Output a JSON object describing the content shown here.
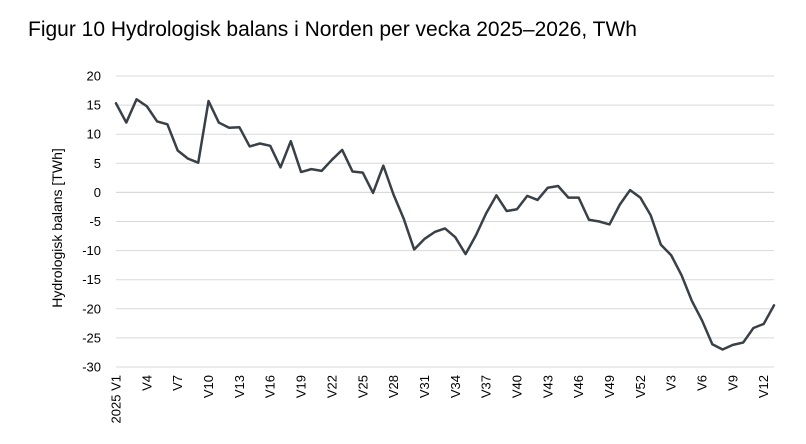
{
  "page": {
    "title": "Figur 10 Hydrologisk balans i Norden per vecka 2025–2026, TWh"
  },
  "colors": {
    "line": "#3a4047",
    "grid": "#d9d9d9",
    "text": "#000000"
  },
  "chart_data": {
    "type": "line",
    "title": "Figur 10 Hydrologisk balans i Norden per vecka 2025–2026, TWh",
    "xlabel": "",
    "ylabel": "Hydrologisk balans [TWh]",
    "ylim": [
      -30,
      20
    ],
    "yticks": [
      20,
      15,
      10,
      5,
      0,
      -5,
      -10,
      -15,
      -20,
      -25,
      -30
    ],
    "grid": "horizontal",
    "x_tick_labels": [
      "2025 V1",
      "V4",
      "V7",
      "V10",
      "V13",
      "V16",
      "V19",
      "V22",
      "V25",
      "V28",
      "V31",
      "V34",
      "V37",
      "V40",
      "V43",
      "V46",
      "V49",
      "V52",
      "V3",
      "V6",
      "V9",
      "V12"
    ],
    "x_tick_every": 3,
    "series": [
      {
        "name": "Hydrologisk balans",
        "weeks": [
          "2025 V1",
          "2025 V2",
          "2025 V3",
          "2025 V4",
          "2025 V5",
          "2025 V6",
          "2025 V7",
          "2025 V8",
          "2025 V9",
          "2025 V10",
          "2025 V11",
          "2025 V12",
          "2025 V13",
          "2025 V14",
          "2025 V15",
          "2025 V16",
          "2025 V17",
          "2025 V18",
          "2025 V19",
          "2025 V20",
          "2025 V21",
          "2025 V22",
          "2025 V23",
          "2025 V24",
          "2025 V25",
          "2025 V26",
          "2025 V27",
          "2025 V28",
          "2025 V29",
          "2025 V30",
          "2025 V31",
          "2025 V32",
          "2025 V33",
          "2025 V34",
          "2025 V35",
          "2025 V36",
          "2025 V37",
          "2025 V38",
          "2025 V39",
          "2025 V40",
          "2025 V41",
          "2025 V42",
          "2025 V43",
          "2025 V44",
          "2025 V45",
          "2025 V46",
          "2025 V47",
          "2025 V48",
          "2025 V49",
          "2025 V50",
          "2025 V51",
          "2025 V52",
          "2026 V1",
          "2026 V2",
          "2026 V3",
          "2026 V4",
          "2026 V5",
          "2026 V6",
          "2026 V7",
          "2026 V8",
          "2026 V9",
          "2026 V10",
          "2026 V11",
          "2026 V12",
          "2026 V13"
        ],
        "values": [
          15.3,
          12.0,
          16.0,
          14.8,
          12.2,
          11.7,
          7.2,
          5.8,
          5.1,
          15.7,
          12.0,
          11.1,
          11.2,
          7.9,
          8.4,
          8.0,
          4.3,
          8.8,
          3.5,
          4.0,
          3.7,
          5.6,
          7.3,
          3.6,
          3.4,
          -0.1,
          4.6,
          -0.4,
          -4.6,
          -9.8,
          -8.0,
          -6.8,
          -6.2,
          -7.7,
          -10.6,
          -7.4,
          -3.6,
          -0.5,
          -3.2,
          -2.9,
          -0.6,
          -1.3,
          0.8,
          1.1,
          -0.9,
          -0.9,
          -4.7,
          -5.0,
          -5.5,
          -2.1,
          0.4,
          -0.9,
          -3.9,
          -9.0,
          -10.8,
          -14.2,
          -18.6,
          -22.0,
          -26.1,
          -27.0,
          -26.2,
          -25.8,
          -23.3,
          -22.6,
          -19.4
        ]
      }
    ]
  }
}
